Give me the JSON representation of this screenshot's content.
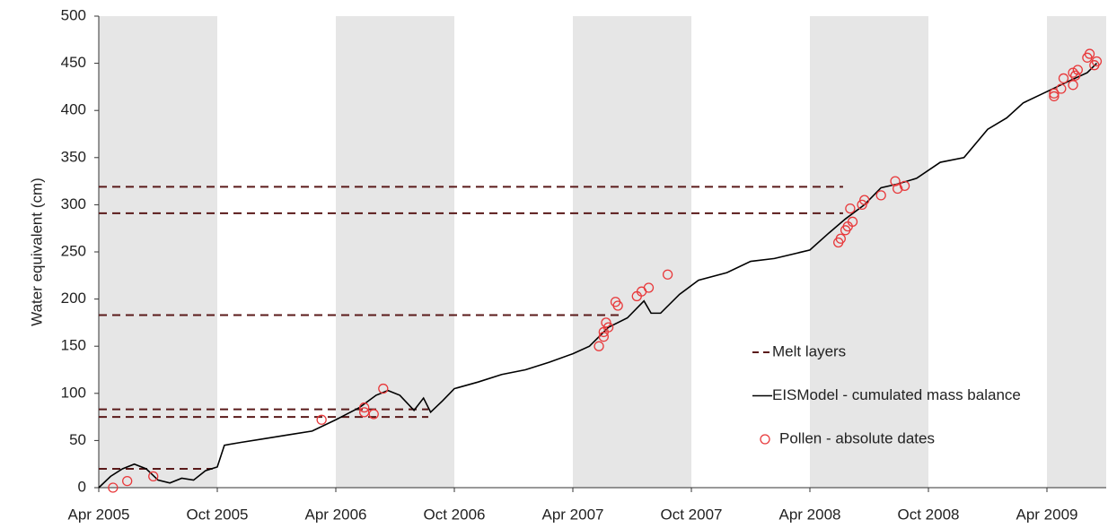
{
  "chart_data": {
    "type": "line",
    "y_label": "Water equivalent (cm)",
    "xlim": [
      2005.25,
      2009.5
    ],
    "ylim": [
      0,
      500
    ],
    "yticks": [
      0,
      50,
      100,
      150,
      200,
      250,
      300,
      350,
      400,
      450,
      500
    ],
    "xticks": [
      {
        "value": 2005.25,
        "label": "Apr 2005"
      },
      {
        "value": 2005.75,
        "label": "Oct 2005"
      },
      {
        "value": 2006.25,
        "label": "Apr 2006"
      },
      {
        "value": 2006.75,
        "label": "Oct 2006"
      },
      {
        "value": 2007.25,
        "label": "Apr 2007"
      },
      {
        "value": 2007.75,
        "label": "Oct 2007"
      },
      {
        "value": 2008.25,
        "label": "Apr 2008"
      },
      {
        "value": 2008.75,
        "label": "Oct 2008"
      },
      {
        "value": 2009.25,
        "label": "Apr 2009"
      }
    ],
    "shaded_periods": [
      [
        2005.25,
        2005.75
      ],
      [
        2006.25,
        2006.75
      ],
      [
        2007.25,
        2007.75
      ],
      [
        2008.25,
        2008.75
      ],
      [
        2009.25,
        2009.5
      ]
    ],
    "shade_color": "#e6e6e6",
    "legend": "center right",
    "series": [
      {
        "name": "Melt layers",
        "type": "hline",
        "color": "#5a1a1a",
        "dashed": true,
        "values": [
          20,
          75,
          83,
          183,
          291,
          319
        ],
        "x_end": [
          2005.73,
          2006.64,
          2006.64,
          2007.45,
          2008.39,
          2008.39
        ]
      },
      {
        "name": "EISModel - cumulated mass balance",
        "type": "line",
        "color": "#000000",
        "x": [
          2005.25,
          2005.3,
          2005.35,
          2005.4,
          2005.45,
          2005.5,
          2005.55,
          2005.6,
          2005.65,
          2005.7,
          2005.75,
          2005.78,
          2005.85,
          2005.95,
          2006.05,
          2006.15,
          2006.25,
          2006.35,
          2006.42,
          2006.47,
          2006.52,
          2006.58,
          2006.62,
          2006.65,
          2006.7,
          2006.75,
          2006.85,
          2006.95,
          2007.05,
          2007.15,
          2007.25,
          2007.32,
          2007.4,
          2007.48,
          2007.55,
          2007.58,
          2007.62,
          2007.7,
          2007.78,
          2007.9,
          2008.0,
          2008.1,
          2008.25,
          2008.33,
          2008.4,
          2008.48,
          2008.55,
          2008.62,
          2008.7,
          2008.8,
          2008.9,
          2009.0,
          2009.08,
          2009.15,
          2009.25,
          2009.35,
          2009.42,
          2009.46
        ],
        "values": [
          0,
          12,
          20,
          25,
          20,
          8,
          5,
          10,
          8,
          18,
          22,
          45,
          48,
          52,
          56,
          60,
          72,
          85,
          98,
          103,
          98,
          82,
          95,
          80,
          92,
          105,
          112,
          120,
          125,
          133,
          142,
          150,
          170,
          180,
          198,
          185,
          185,
          205,
          220,
          228,
          240,
          243,
          252,
          270,
          285,
          300,
          318,
          322,
          328,
          345,
          350,
          380,
          392,
          408,
          420,
          432,
          440,
          450
        ]
      },
      {
        "name": "Pollen - absolute dates",
        "type": "scatter",
        "color": "#e8393b",
        "x": [
          2005.31,
          2005.37,
          2005.48,
          2006.19,
          2006.37,
          2006.37,
          2006.41,
          2006.45,
          2007.36,
          2007.38,
          2007.38,
          2007.39,
          2007.4,
          2007.43,
          2007.44,
          2007.52,
          2007.54,
          2007.57,
          2007.65,
          2008.37,
          2008.38,
          2008.4,
          2008.41,
          2008.42,
          2008.43,
          2008.47,
          2008.48,
          2008.55,
          2008.61,
          2008.62,
          2008.65,
          2009.28,
          2009.28,
          2009.31,
          2009.32,
          2009.36,
          2009.36,
          2009.37,
          2009.38,
          2009.42,
          2009.43,
          2009.45,
          2009.46
        ],
        "values": [
          0,
          7,
          12,
          72,
          85,
          80,
          78,
          105,
          150,
          160,
          165,
          175,
          170,
          197,
          193,
          203,
          208,
          212,
          226,
          260,
          264,
          273,
          277,
          296,
          282,
          300,
          305,
          310,
          325,
          317,
          320,
          415,
          418,
          423,
          434,
          427,
          440,
          437,
          443,
          456,
          460,
          448,
          452
        ]
      }
    ]
  }
}
